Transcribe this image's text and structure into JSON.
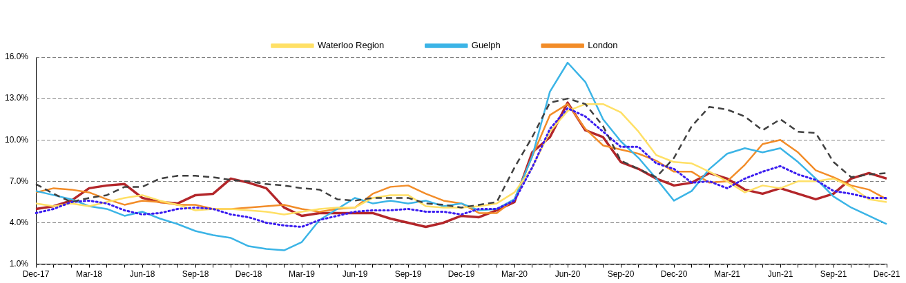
{
  "chart_data": {
    "type": "line",
    "categories": [
      "Dec-17",
      null,
      null,
      "Mar-18",
      null,
      null,
      "Jun-18",
      null,
      null,
      "Sep-18",
      null,
      null,
      "Dec-18",
      null,
      null,
      "Mar-19",
      null,
      null,
      "Jun-19",
      null,
      null,
      "Sep-19",
      null,
      null,
      "Dec-19",
      null,
      null,
      "Mar-20",
      null,
      null,
      "Jun-20",
      null,
      null,
      "Sep-20",
      null,
      null,
      "Dec-20",
      null,
      null,
      "Mar-21",
      null,
      null,
      "Jun-21",
      null,
      null,
      "Sep-21",
      null,
      null,
      "Dec-21"
    ],
    "series": [
      {
        "color": "#404040",
        "line_style": "dashed",
        "values": [
          6.8,
          6.1,
          5.5,
          5.8,
          6.0,
          6.6,
          6.6,
          7.2,
          7.4,
          7.4,
          7.3,
          7.1,
          7.0,
          6.8,
          6.7,
          6.5,
          6.4,
          5.7,
          5.6,
          5.8,
          5.8,
          5.8,
          5.4,
          5.3,
          5.1,
          5.3,
          5.5,
          8.0,
          10.2,
          12.7,
          13.0,
          12.6,
          11.0,
          8.5,
          7.9,
          7.3,
          8.7,
          11.0,
          12.4,
          12.2,
          11.7,
          10.7,
          11.5,
          10.6,
          10.5,
          8.4,
          7.3,
          7.5,
          7.6
        ]
      },
      {
        "color": "#3a1cf0",
        "line_style": "dotted",
        "values": [
          4.7,
          5.0,
          5.5,
          5.6,
          5.4,
          4.9,
          4.6,
          4.7,
          5.0,
          5.1,
          5.0,
          4.6,
          4.4,
          4.0,
          3.8,
          3.7,
          4.2,
          4.5,
          4.8,
          4.9,
          4.9,
          5.0,
          4.8,
          4.8,
          4.6,
          5.0,
          5.0,
          5.6,
          8.0,
          10.8,
          12.3,
          11.7,
          10.6,
          9.5,
          9.5,
          8.3,
          7.9,
          6.9,
          7.0,
          6.5,
          7.2,
          7.7,
          8.1,
          7.5,
          7.1,
          6.3,
          6.1,
          5.8,
          5.8
        ]
      },
      {
        "name": "Waterloo Region",
        "color": "#ffe066",
        "line_style": "solid",
        "values": [
          5.4,
          5.2,
          5.4,
          5.2,
          5.5,
          5.8,
          6.0,
          5.6,
          5.3,
          4.9,
          5.0,
          5.0,
          4.9,
          4.8,
          4.6,
          4.8,
          5.0,
          5.1,
          5.1,
          5.8,
          6.0,
          6.0,
          5.2,
          5.1,
          5.1,
          5.2,
          5.4,
          6.2,
          8.0,
          10.6,
          12.1,
          12.6,
          12.6,
          12.0,
          10.6,
          8.9,
          8.4,
          8.3,
          7.7,
          7.0,
          6.2,
          6.7,
          6.5,
          7.0,
          7.0,
          7.2,
          6.6,
          5.7,
          5.5
        ]
      },
      {
        "name": "Guelph",
        "color": "#3bb4e6",
        "line_style": "solid",
        "values": [
          6.3,
          6.0,
          5.7,
          5.2,
          5.0,
          4.5,
          4.8,
          4.3,
          3.9,
          3.4,
          3.1,
          2.9,
          2.3,
          2.1,
          2.0,
          2.6,
          4.2,
          5.0,
          5.8,
          5.4,
          5.6,
          5.4,
          5.6,
          5.2,
          5.4,
          4.9,
          5.0,
          5.7,
          8.8,
          13.5,
          15.6,
          14.2,
          11.5,
          9.9,
          8.7,
          7.2,
          5.6,
          6.3,
          7.9,
          9.0,
          9.4,
          9.1,
          9.4,
          8.4,
          7.2,
          5.9,
          5.1,
          4.5,
          3.9
        ]
      },
      {
        "name": "London",
        "color": "#f28c28",
        "line_style": "solid",
        "values": [
          6.2,
          6.5,
          6.4,
          6.2,
          5.7,
          5.3,
          5.6,
          5.5,
          5.3,
          5.3,
          5.0,
          5.0,
          5.1,
          5.2,
          5.3,
          5.0,
          4.8,
          5.0,
          5.1,
          6.1,
          6.6,
          6.7,
          6.1,
          5.6,
          5.4,
          4.7,
          4.7,
          5.7,
          8.8,
          11.8,
          12.6,
          10.8,
          9.6,
          9.3,
          9.0,
          8.5,
          7.7,
          7.7,
          6.9,
          7.0,
          8.2,
          9.7,
          10.0,
          9.1,
          7.8,
          7.3,
          6.7,
          6.4,
          5.7
        ]
      },
      {
        "color": "#b3262a",
        "line_style": "solid",
        "values": [
          5.0,
          5.2,
          5.6,
          6.5,
          6.7,
          6.8,
          5.8,
          5.5,
          5.4,
          6.0,
          6.1,
          7.2,
          6.9,
          6.5,
          5.1,
          4.5,
          4.7,
          4.7,
          4.7,
          4.7,
          4.3,
          4.0,
          3.7,
          4.0,
          4.5,
          4.4,
          4.9,
          5.5,
          9.1,
          10.2,
          12.7,
          10.7,
          10.2,
          8.4,
          7.9,
          7.2,
          6.7,
          6.9,
          7.6,
          7.2,
          6.4,
          6.1,
          6.5,
          6.1,
          5.7,
          6.1,
          7.2,
          7.6,
          7.2
        ]
      }
    ],
    "ylim": [
      1,
      16
    ],
    "yticks": [
      {
        "value": 1,
        "label": "1.0%"
      },
      {
        "value": 4,
        "label": "4.0%"
      },
      {
        "value": 7,
        "label": "7.0%"
      },
      {
        "value": 10,
        "label": "10.0%"
      },
      {
        "value": 13,
        "label": "13.0%"
      },
      {
        "value": 16,
        "label": "16.0%"
      }
    ],
    "grid": "y",
    "legend": "top",
    "marker": "none"
  }
}
